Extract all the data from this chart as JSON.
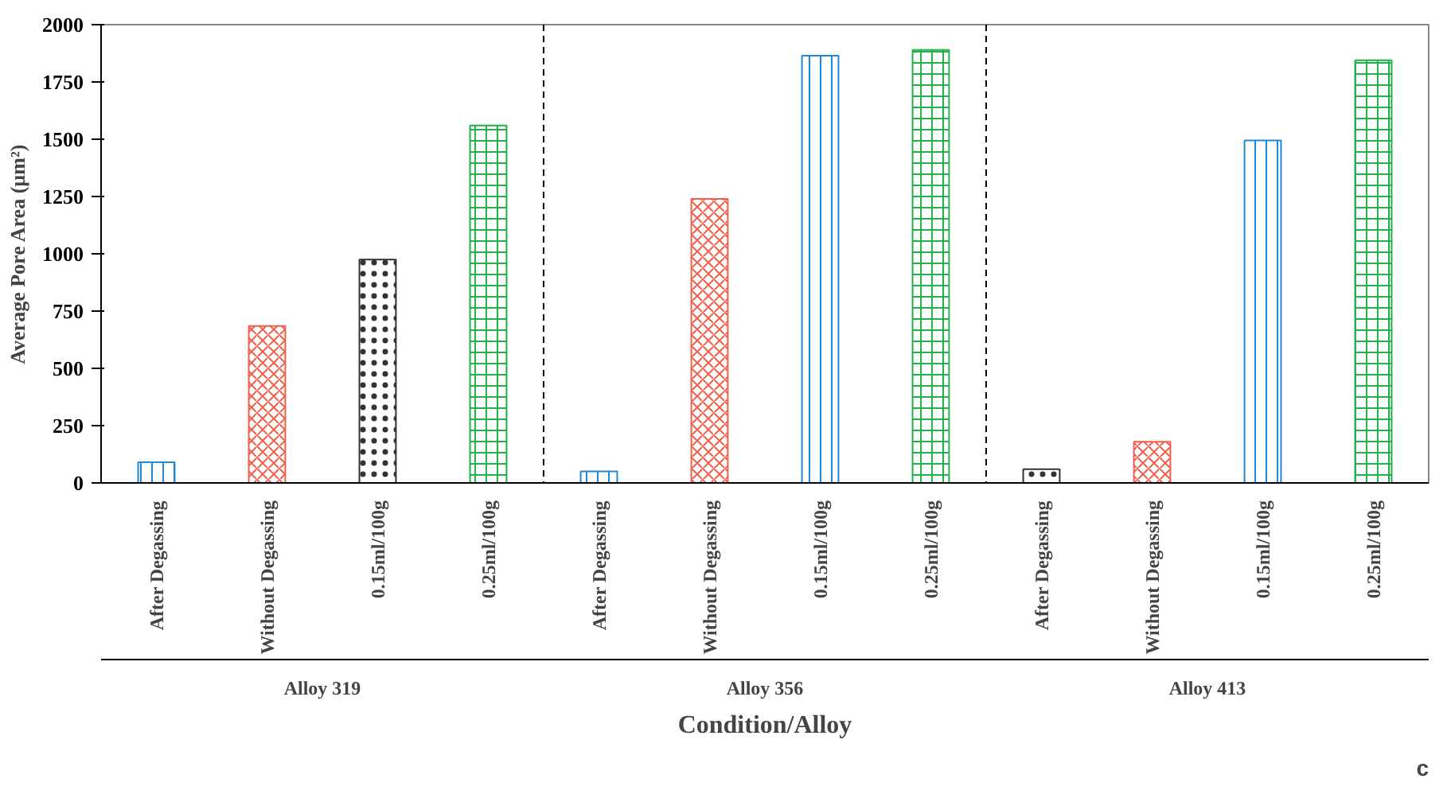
{
  "chart_data": {
    "type": "bar",
    "ylabel": "Average Pore Area (µm²)",
    "xlabel": "Condition/Alloy",
    "categories": [
      "After Degassing",
      "Without Degassing",
      "0.15ml/100g",
      "0.25ml/100g",
      "After Degassing",
      "Without Degassing",
      "0.15ml/100g",
      "0.25ml/100g",
      "After Degassing",
      "Without Degassing",
      "0.15ml/100g",
      "0.25ml/100g"
    ],
    "values": [
      90,
      685,
      975,
      1560,
      50,
      1240,
      1865,
      1890,
      60,
      180,
      1495,
      1845
    ],
    "colors": [
      "#1e88d8",
      "#f0604c",
      "#333333",
      "#22b04b",
      "#1e88d8",
      "#f0604c",
      "#1e88d8",
      "#22b04b",
      "#333333",
      "#f0604c",
      "#1e88d8",
      "#22b04b"
    ],
    "ylim": [
      0,
      2000
    ],
    "yticks": [
      0,
      250,
      500,
      750,
      1000,
      1250,
      1500,
      1750,
      2000
    ],
    "grid": false,
    "annotations": [
      "Alloy 319",
      "Alloy 356",
      "Alloy 413",
      "c"
    ]
  }
}
